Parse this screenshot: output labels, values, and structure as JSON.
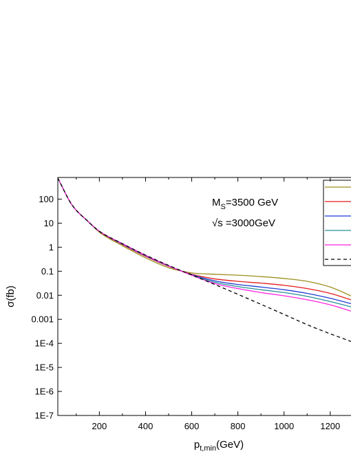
{
  "chart_data": {
    "type": "line",
    "title": "",
    "xlabel": "p",
    "xlabel_sub": "t,min",
    "xlabel_unit": "(GeV)",
    "ylabel": "σ(fb)",
    "xlim": [
      20,
      1290
    ],
    "ylim_log10": [
      -7,
      2.9
    ],
    "y_scale": "log",
    "x_ticks": [
      200,
      400,
      600,
      800,
      1000,
      1200
    ],
    "x_tick_labels": [
      "200",
      "400",
      "600",
      "800",
      "1000",
      "1200"
    ],
    "y_ticks_log10": [
      -7,
      -6,
      -5,
      -4,
      -3,
      -2,
      -1,
      0,
      1,
      2
    ],
    "y_tick_labels": [
      "1E-7",
      "1E-6",
      "1E-5",
      "1E-4",
      "0.001",
      "0.01",
      "0.1",
      "1",
      "10",
      "100"
    ],
    "annotations": [
      {
        "main": "M",
        "sub": "S",
        "rest": "=3500 GeV"
      },
      {
        "main": "√s =3000GeV"
      }
    ],
    "legend_position": "top-right",
    "series": [
      {
        "color": "#9c8f1c",
        "dash": "solid",
        "x": [
          20,
          80,
          150,
          200,
          300,
          400,
          500,
          600,
          700,
          800,
          900,
          1000,
          1100,
          1200,
          1290
        ],
        "y": [
          750,
          60,
          12,
          4.2,
          1.15,
          0.36,
          0.14,
          0.085,
          0.075,
          0.068,
          0.06,
          0.05,
          0.038,
          0.022,
          0.0095
        ]
      },
      {
        "color": "#e31a1c",
        "dash": "solid",
        "x": [
          20,
          80,
          150,
          200,
          300,
          400,
          500,
          600,
          700,
          800,
          900,
          1000,
          1100,
          1200,
          1290
        ],
        "y": [
          750,
          60,
          12,
          4.5,
          1.3,
          0.42,
          0.16,
          0.075,
          0.048,
          0.038,
          0.032,
          0.026,
          0.019,
          0.012,
          0.0065
        ]
      },
      {
        "color": "#1f3bd6",
        "dash": "solid",
        "x": [
          20,
          80,
          150,
          200,
          300,
          400,
          500,
          600,
          700,
          800,
          900,
          1000,
          1100,
          1200,
          1290
        ],
        "y": [
          750,
          60,
          12,
          4.55,
          1.35,
          0.44,
          0.165,
          0.072,
          0.04,
          0.028,
          0.022,
          0.017,
          0.012,
          0.0075,
          0.0045
        ]
      },
      {
        "color": "#2a8f96",
        "dash": "solid",
        "x": [
          20,
          80,
          150,
          200,
          300,
          400,
          500,
          600,
          700,
          800,
          900,
          1000,
          1100,
          1200,
          1290
        ],
        "y": [
          750,
          60,
          12,
          4.6,
          1.38,
          0.45,
          0.168,
          0.07,
          0.035,
          0.023,
          0.017,
          0.013,
          0.009,
          0.0055,
          0.0033
        ]
      },
      {
        "color": "#ff22dd",
        "dash": "solid",
        "x": [
          20,
          80,
          150,
          200,
          300,
          400,
          500,
          600,
          700,
          800,
          900,
          1000,
          1100,
          1200,
          1290
        ],
        "y": [
          750,
          60,
          12,
          4.6,
          1.4,
          0.46,
          0.17,
          0.068,
          0.031,
          0.019,
          0.013,
          0.0095,
          0.0065,
          0.004,
          0.0022
        ]
      },
      {
        "color": "#000000",
        "dash": "dashed",
        "x": [
          20,
          80,
          150,
          200,
          300,
          400,
          500,
          600,
          700,
          800,
          900,
          1000,
          1100,
          1200,
          1290
        ],
        "y": [
          750,
          60,
          12,
          4.6,
          1.4,
          0.47,
          0.175,
          0.07,
          0.028,
          0.011,
          0.0042,
          0.0016,
          0.0006,
          0.00025,
          0.00012
        ]
      }
    ]
  }
}
